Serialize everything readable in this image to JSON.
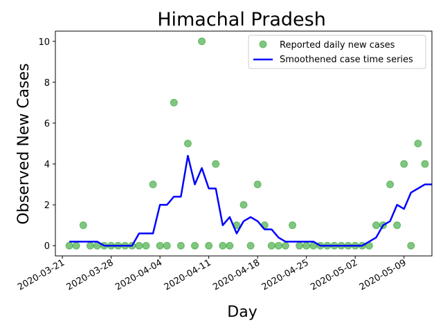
{
  "chart_data": {
    "type": "scatter",
    "title": "Himachal Pradesh",
    "xlabel": "Day",
    "ylabel": "Observed New Cases",
    "x_axis": "date",
    "xlim": [
      "2020-03-20",
      "2020-05-13"
    ],
    "ylim": [
      -0.5,
      10.5
    ],
    "x_ticks": [
      "2020-03-21",
      "2020-03-28",
      "2020-04-04",
      "2020-04-11",
      "2020-04-18",
      "2020-04-25",
      "2020-05-02",
      "2020-05-09"
    ],
    "y_ticks": [
      0,
      2,
      4,
      6,
      8,
      10
    ],
    "grid": false,
    "legend_position": "top-right",
    "series": [
      {
        "name": "Reported daily new cases",
        "style": "markers",
        "color": "#2ca02c",
        "points": [
          [
            "2020-03-22",
            0
          ],
          [
            "2020-03-23",
            0
          ],
          [
            "2020-03-24",
            1
          ],
          [
            "2020-03-25",
            0
          ],
          [
            "2020-03-26",
            0
          ],
          [
            "2020-03-27",
            0
          ],
          [
            "2020-03-28",
            0
          ],
          [
            "2020-03-29",
            0
          ],
          [
            "2020-03-30",
            0
          ],
          [
            "2020-03-31",
            0
          ],
          [
            "2020-04-01",
            0
          ],
          [
            "2020-04-02",
            0
          ],
          [
            "2020-04-03",
            3
          ],
          [
            "2020-04-04",
            0
          ],
          [
            "2020-04-05",
            0
          ],
          [
            "2020-04-06",
            7
          ],
          [
            "2020-04-07",
            0
          ],
          [
            "2020-04-08",
            5
          ],
          [
            "2020-04-09",
            0
          ],
          [
            "2020-04-10",
            10
          ],
          [
            "2020-04-11",
            0
          ],
          [
            "2020-04-12",
            4
          ],
          [
            "2020-04-13",
            0
          ],
          [
            "2020-04-14",
            0
          ],
          [
            "2020-04-15",
            1
          ],
          [
            "2020-04-16",
            2
          ],
          [
            "2020-04-17",
            0
          ],
          [
            "2020-04-18",
            3
          ],
          [
            "2020-04-19",
            1
          ],
          [
            "2020-04-20",
            0
          ],
          [
            "2020-04-21",
            0
          ],
          [
            "2020-04-22",
            0
          ],
          [
            "2020-04-23",
            1
          ],
          [
            "2020-04-24",
            0
          ],
          [
            "2020-04-25",
            0
          ],
          [
            "2020-04-26",
            0
          ],
          [
            "2020-04-27",
            0
          ],
          [
            "2020-04-28",
            0
          ],
          [
            "2020-04-29",
            0
          ],
          [
            "2020-04-30",
            0
          ],
          [
            "2020-05-01",
            0
          ],
          [
            "2020-05-02",
            0
          ],
          [
            "2020-05-03",
            0
          ],
          [
            "2020-05-04",
            0
          ],
          [
            "2020-05-05",
            1
          ],
          [
            "2020-05-06",
            1
          ],
          [
            "2020-05-07",
            3
          ],
          [
            "2020-05-08",
            1
          ],
          [
            "2020-05-09",
            4
          ],
          [
            "2020-05-10",
            0
          ],
          [
            "2020-05-11",
            5
          ],
          [
            "2020-05-12",
            4
          ]
        ]
      },
      {
        "name": "Smoothened case time series",
        "style": "line",
        "color": "#0000ff",
        "points": [
          [
            "2020-03-22",
            0.2
          ],
          [
            "2020-03-23",
            0.2
          ],
          [
            "2020-03-24",
            0.2
          ],
          [
            "2020-03-25",
            0.2
          ],
          [
            "2020-03-26",
            0.2
          ],
          [
            "2020-03-27",
            0.0
          ],
          [
            "2020-03-28",
            0.0
          ],
          [
            "2020-03-29",
            0.0
          ],
          [
            "2020-03-30",
            0.0
          ],
          [
            "2020-03-31",
            0.0
          ],
          [
            "2020-04-01",
            0.6
          ],
          [
            "2020-04-02",
            0.6
          ],
          [
            "2020-04-03",
            0.6
          ],
          [
            "2020-04-04",
            2.0
          ],
          [
            "2020-04-05",
            2.0
          ],
          [
            "2020-04-06",
            2.4
          ],
          [
            "2020-04-07",
            2.4
          ],
          [
            "2020-04-08",
            4.4
          ],
          [
            "2020-04-09",
            3.0
          ],
          [
            "2020-04-10",
            3.8
          ],
          [
            "2020-04-11",
            2.8
          ],
          [
            "2020-04-12",
            2.8
          ],
          [
            "2020-04-13",
            1.0
          ],
          [
            "2020-04-14",
            1.4
          ],
          [
            "2020-04-15",
            0.6
          ],
          [
            "2020-04-16",
            1.2
          ],
          [
            "2020-04-17",
            1.4
          ],
          [
            "2020-04-18",
            1.2
          ],
          [
            "2020-04-19",
            0.8
          ],
          [
            "2020-04-20",
            0.8
          ],
          [
            "2020-04-21",
            0.4
          ],
          [
            "2020-04-22",
            0.2
          ],
          [
            "2020-04-23",
            0.2
          ],
          [
            "2020-04-24",
            0.2
          ],
          [
            "2020-04-25",
            0.2
          ],
          [
            "2020-04-26",
            0.2
          ],
          [
            "2020-04-27",
            0.0
          ],
          [
            "2020-04-28",
            0.0
          ],
          [
            "2020-04-29",
            0.0
          ],
          [
            "2020-04-30",
            0.0
          ],
          [
            "2020-05-01",
            0.0
          ],
          [
            "2020-05-02",
            0.0
          ],
          [
            "2020-05-03",
            0.0
          ],
          [
            "2020-05-04",
            0.2
          ],
          [
            "2020-05-05",
            0.4
          ],
          [
            "2020-05-06",
            1.0
          ],
          [
            "2020-05-07",
            1.2
          ],
          [
            "2020-05-08",
            2.0
          ],
          [
            "2020-05-09",
            1.8
          ],
          [
            "2020-05-10",
            2.6
          ],
          [
            "2020-05-11",
            2.8
          ],
          [
            "2020-05-12",
            3.0
          ],
          [
            "2020-05-13",
            3.0
          ]
        ]
      }
    ]
  }
}
